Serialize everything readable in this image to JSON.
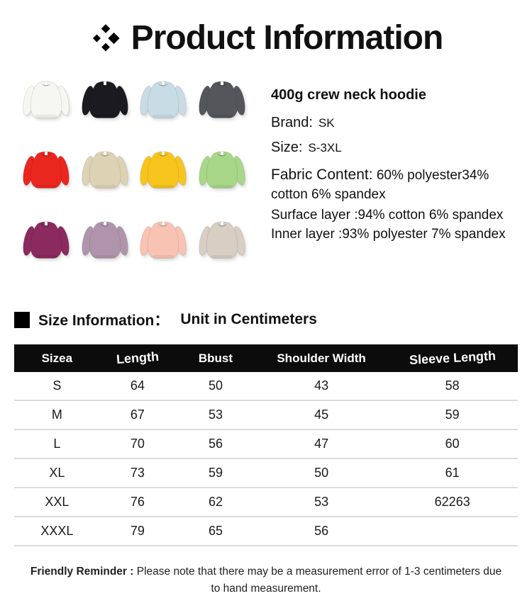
{
  "title": {
    "text": "Product Information",
    "icon": "diamond-cluster-icon"
  },
  "product": {
    "name": "400g crew neck hoodie",
    "brand_label": "Brand:",
    "brand_value": "SK",
    "size_label": "Size:",
    "size_value": "S-3XL",
    "fabric_label": "Fabric Content:",
    "fabric_value": "60% polyester34% cotton 6% spandex",
    "surface_line": "Surface layer :94% cotton 6% spandex",
    "inner_line": "Inner layer :93% polyester 7% spandex",
    "colors": [
      {
        "name": "white",
        "hex": "#f6f6f3"
      },
      {
        "name": "black",
        "hex": "#1a1a1f"
      },
      {
        "name": "light-blue",
        "hex": "#c8dce6"
      },
      {
        "name": "dark-gray",
        "hex": "#54565b"
      },
      {
        "name": "red",
        "hex": "#ea271f"
      },
      {
        "name": "beige",
        "hex": "#ddd3b4"
      },
      {
        "name": "yellow",
        "hex": "#f8c41e"
      },
      {
        "name": "light-green",
        "hex": "#a8d789"
      },
      {
        "name": "plum",
        "hex": "#8b2a5f"
      },
      {
        "name": "mauve",
        "hex": "#b094ac"
      },
      {
        "name": "pink",
        "hex": "#f9c3b3"
      },
      {
        "name": "oatmeal",
        "hex": "#d8cec3"
      }
    ]
  },
  "size_section": {
    "bullet": "black-square-bullet",
    "heading": "Size Information：",
    "unit": "Unit in Centimeters",
    "table": {
      "headers": [
        "Sizea",
        "Length",
        "Bbust",
        "Shoulder Width",
        "Sleeve Length"
      ],
      "rows": [
        [
          "S",
          "64",
          "50",
          "43",
          "58"
        ],
        [
          "M",
          "67",
          "53",
          "45",
          "59"
        ],
        [
          "L",
          "70",
          "56",
          "47",
          "60"
        ],
        [
          "XL",
          "73",
          "59",
          "50",
          "61"
        ],
        [
          "XXL",
          "76",
          "62",
          "53",
          "62263"
        ],
        [
          "XXXL",
          "79",
          "65",
          "56",
          ""
        ]
      ]
    }
  },
  "reminder": {
    "label": "Friendly Reminder :",
    "text": " Please note that there may be a measurement error of 1-3 centimeters due to hand measurement."
  },
  "theme": {
    "table_header_bg": "#0c0c0c",
    "table_divider": "#dcdcdc",
    "text_color": "#111111",
    "background": "#ffffff"
  }
}
